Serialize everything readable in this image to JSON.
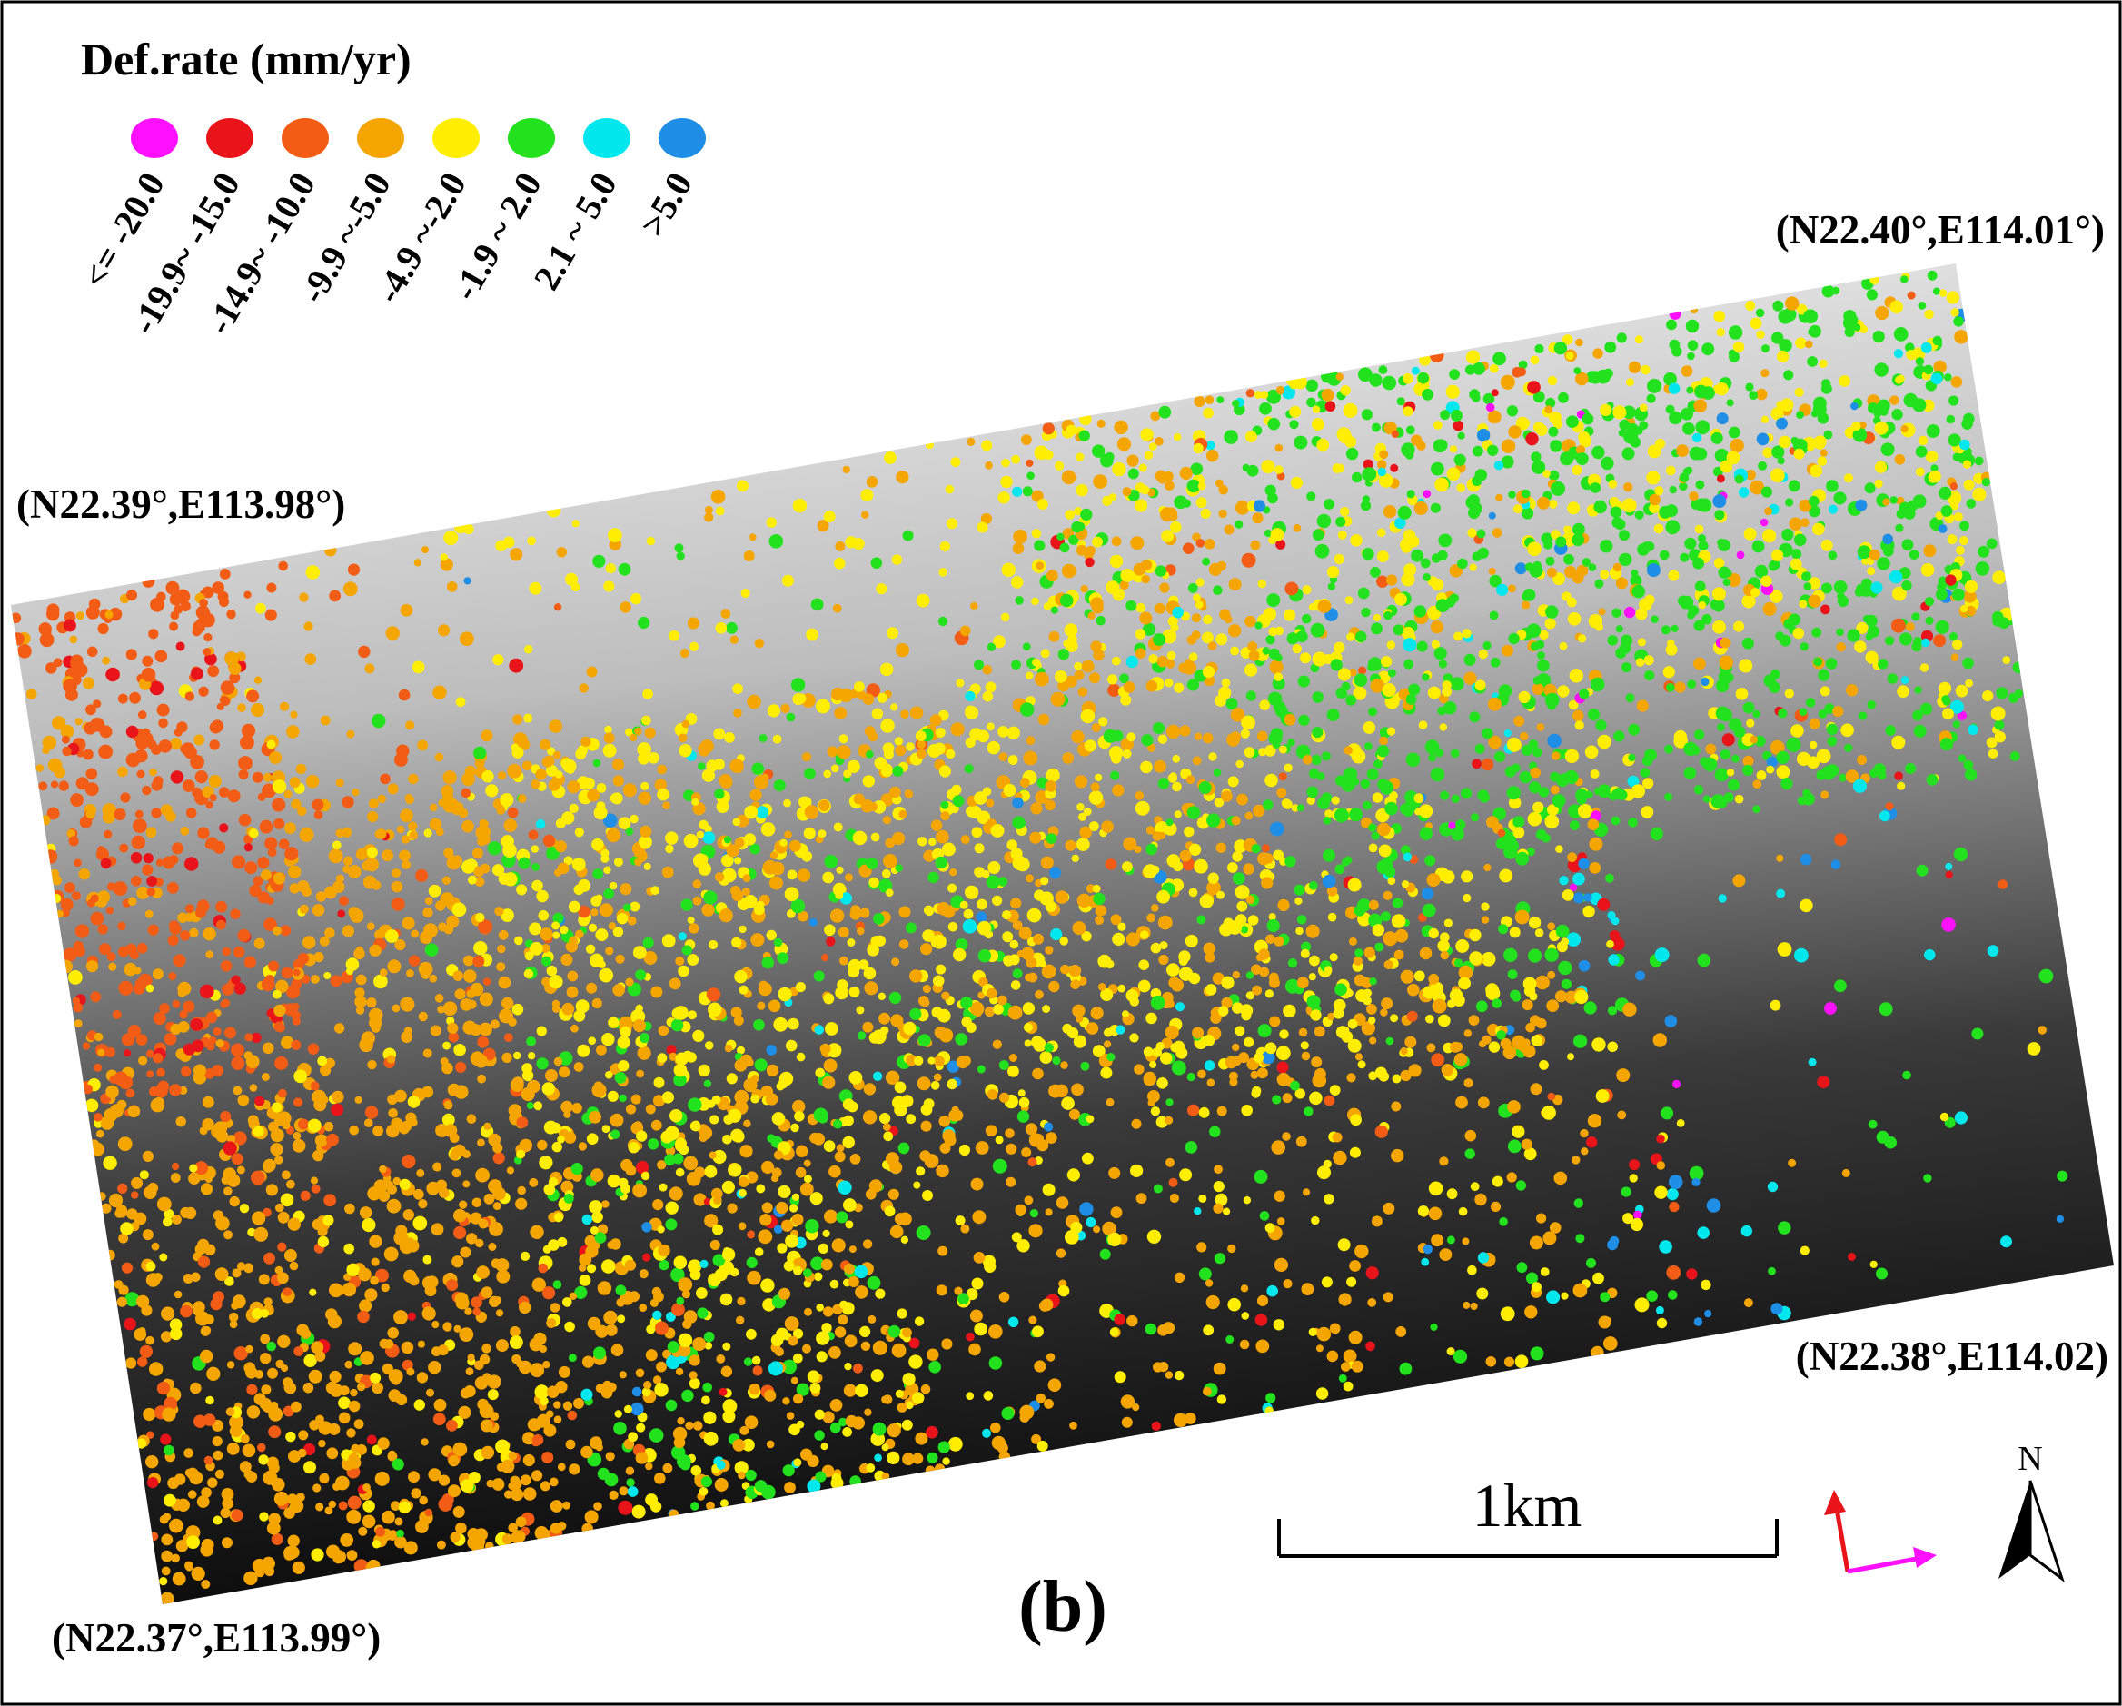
{
  "legend": {
    "title": "Def.rate (mm/yr)",
    "items": [
      {
        "label": "<= -20.0",
        "color": "#ff10ff"
      },
      {
        "label": "-19.9~ -15.0",
        "color": "#e8141a"
      },
      {
        "label": "-14.9~ -10.0",
        "color": "#f25c14"
      },
      {
        "label": "-9.9 ~-5.0",
        "color": "#f5a500"
      },
      {
        "label": "-4.9 ~-2.0",
        "color": "#ffee00"
      },
      {
        "label": "-1.9 ~ 2.0",
        "color": "#22e21e"
      },
      {
        "label": "2.1 ~ 5.0",
        "color": "#00e8ee"
      },
      {
        "label": ">5.0",
        "color": "#1e8ee6"
      }
    ]
  },
  "corners": {
    "top_left": "(N22.39°,E113.98°)",
    "top_right": "(N22.40°,E114.01°)",
    "bottom_right": "(N22.38°,E114.02)",
    "bottom_left": "(N22.37°,E113.99°)"
  },
  "scale_bar": "1km",
  "north": "N",
  "panel_label": "(b)"
}
